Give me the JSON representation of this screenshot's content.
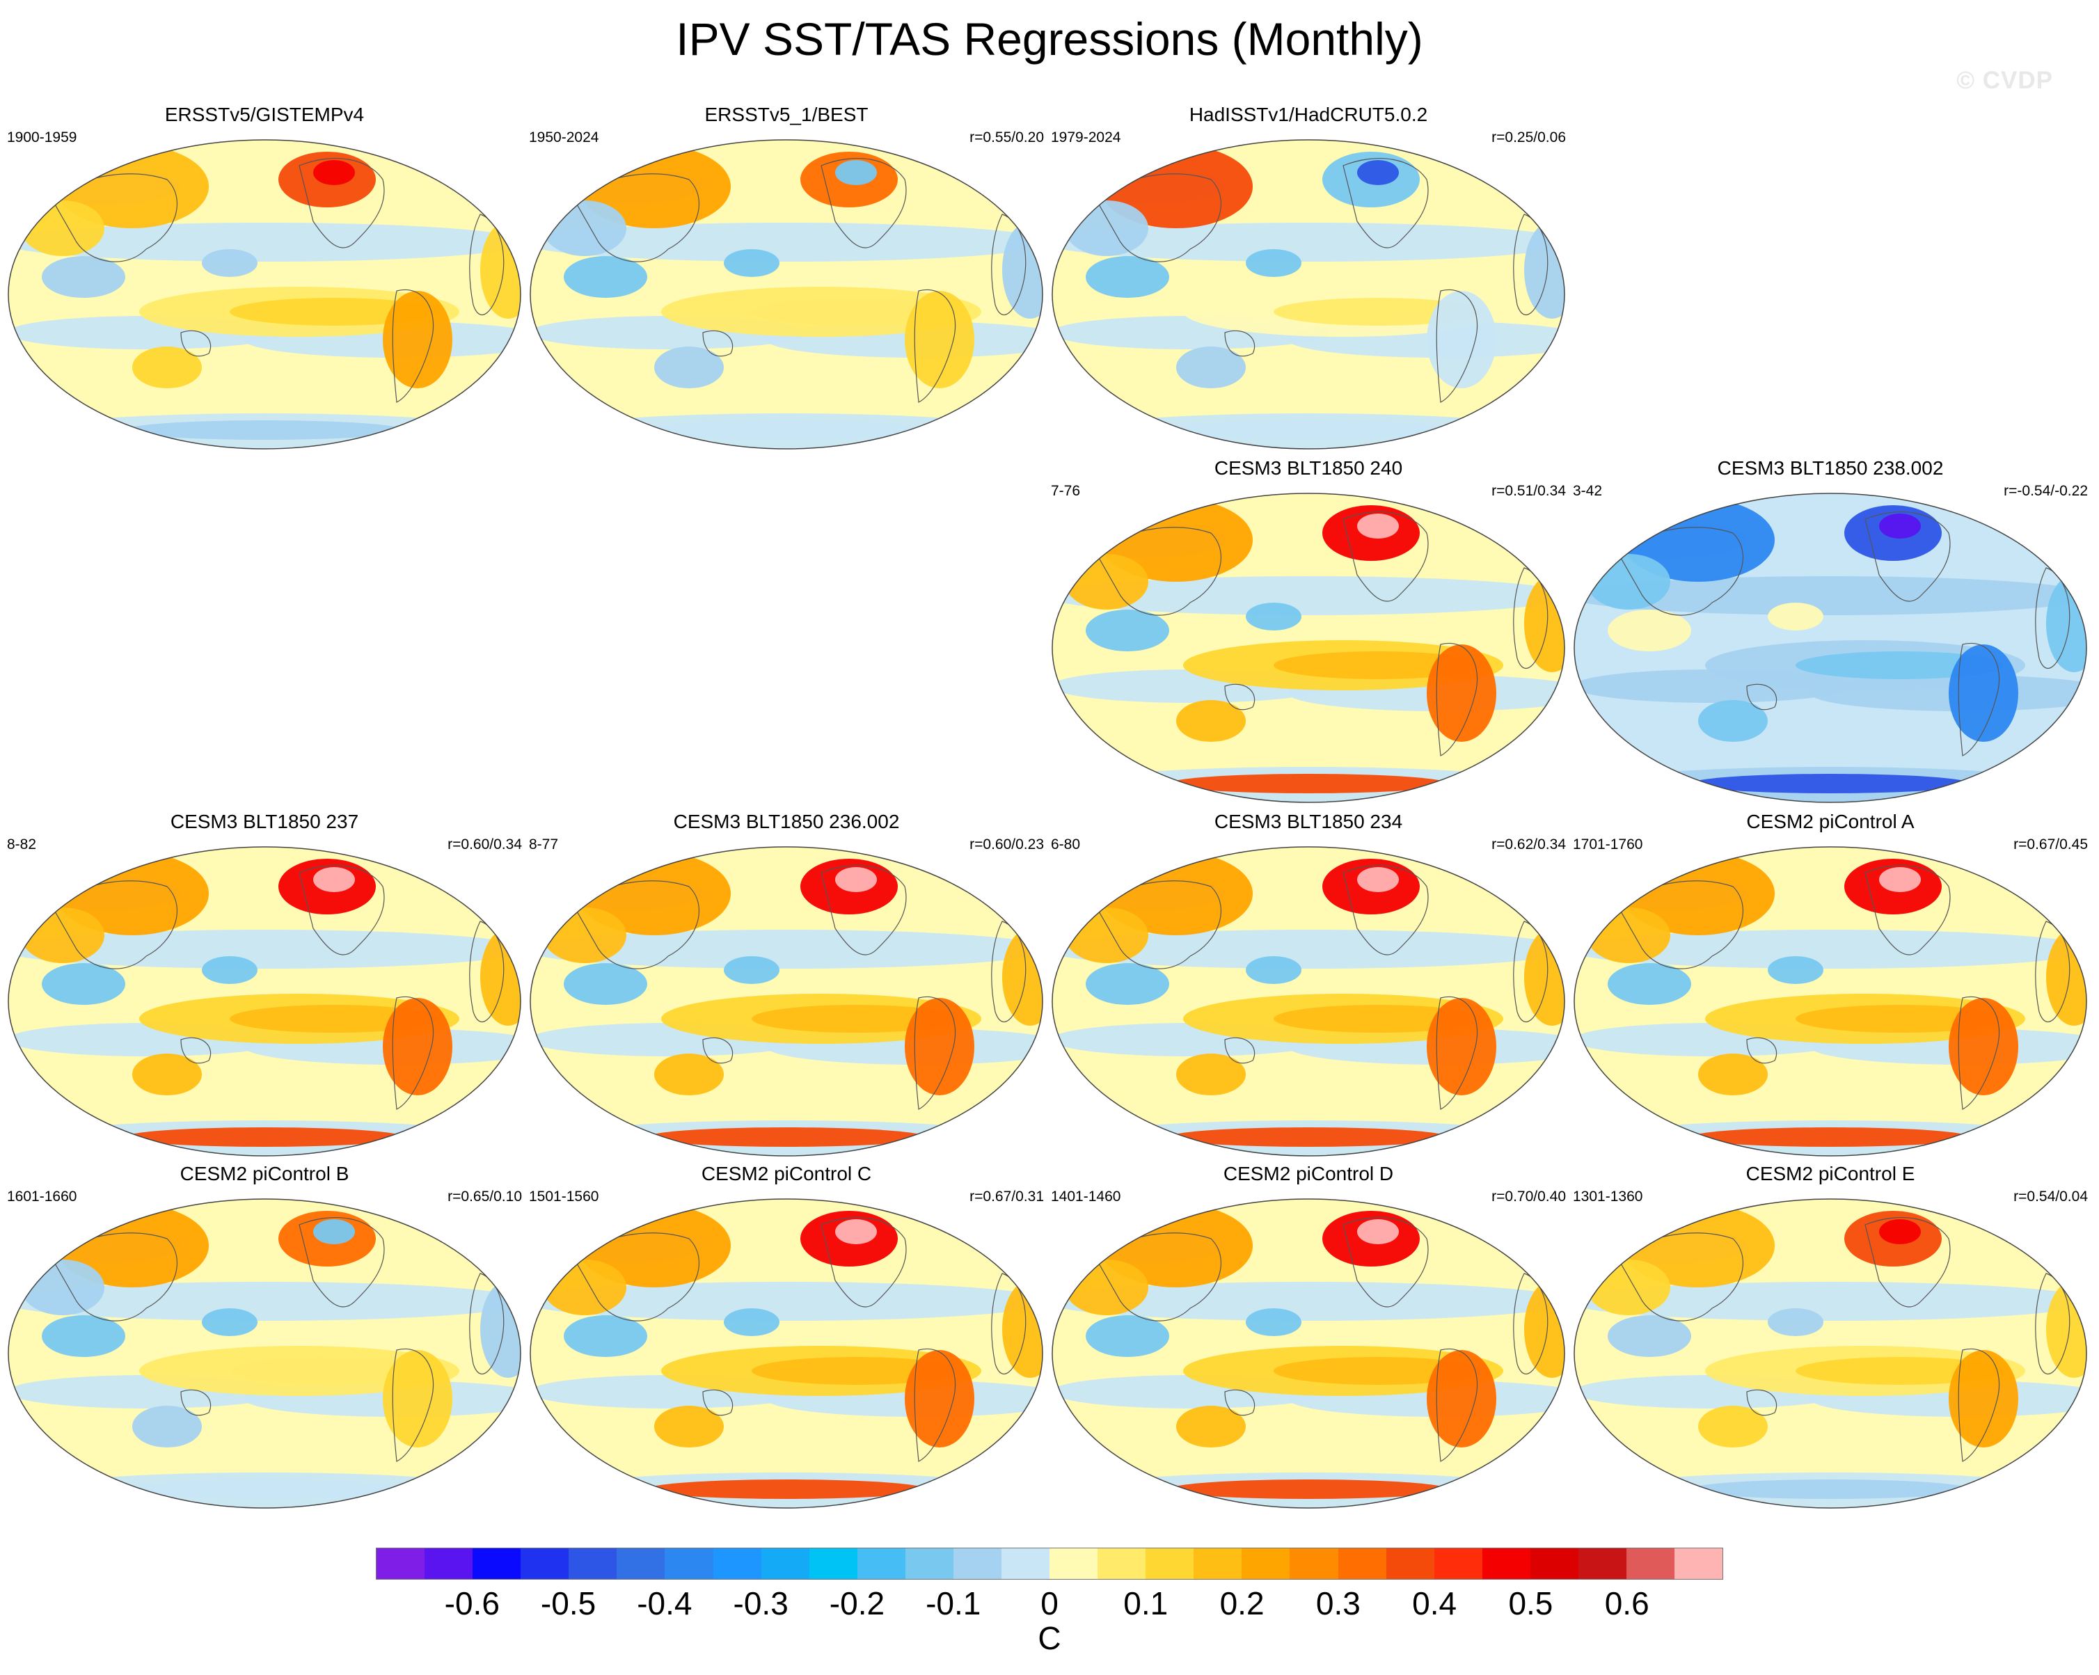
{
  "title": "IPV SST/TAS Regressions (Monthly)",
  "watermark": "© CVDP",
  "panels": [
    {
      "title": "ERSSTv5/GISTEMPv4",
      "period": "1900-1959",
      "corr": "",
      "palette": "mixed_warm"
    },
    {
      "title": "ERSSTv5_1/BEST",
      "period": "1950-2024",
      "corr": "r=0.55/0.20",
      "palette": "mixed"
    },
    {
      "title": "HadISSTv1/HadCRUT5.0.2",
      "period": "1979-2024",
      "corr": "r=0.25/0.06",
      "palette": "mixed_cool"
    },
    {
      "title": "CESM3 BLT1850 240",
      "period": "7-76",
      "corr": "r=0.51/0.34",
      "palette": "warm"
    },
    {
      "title": "CESM3 BLT1850 238.002",
      "period": "3-42",
      "corr": "r=-0.54/-0.22",
      "palette": "cool"
    },
    {
      "title": "CESM3 BLT1850 237",
      "period": "8-82",
      "corr": "r=0.60/0.34",
      "palette": "warm"
    },
    {
      "title": "CESM3 BLT1850 236.002",
      "period": "8-77",
      "corr": "r=0.60/0.23",
      "palette": "warm"
    },
    {
      "title": "CESM3 BLT1850 234",
      "period": "6-80",
      "corr": "r=0.62/0.34",
      "palette": "warm"
    },
    {
      "title": "CESM2 piControl A",
      "period": "1701-1760",
      "corr": "r=0.67/0.45",
      "palette": "warm"
    },
    {
      "title": "CESM2 piControl B",
      "period": "1601-1660",
      "corr": "r=0.65/0.10",
      "palette": "mixed"
    },
    {
      "title": "CESM2 piControl C",
      "period": "1501-1560",
      "corr": "r=0.67/0.31",
      "palette": "warm"
    },
    {
      "title": "CESM2 piControl D",
      "period": "1401-1460",
      "corr": "r=0.70/0.40",
      "palette": "warm"
    },
    {
      "title": "CESM2 piControl E",
      "period": "1301-1360",
      "corr": "r=0.54/0.04",
      "palette": "mixed_warm"
    }
  ],
  "colorbar": {
    "colors": [
      "#7f1ee6",
      "#5a14ef",
      "#0a0aff",
      "#1e32f0",
      "#2d55e6",
      "#3270e6",
      "#2d87f0",
      "#1e96ff",
      "#14aaf5",
      "#00c3f5",
      "#46bef5",
      "#78c8f0",
      "#a5d2f0",
      "#c8e6f5",
      "#fffab4",
      "#ffeb69",
      "#ffd732",
      "#ffbe14",
      "#ffa500",
      "#ff8c00",
      "#ff6e00",
      "#f54b0a",
      "#ff2d0a",
      "#f50000",
      "#dc0000",
      "#c81414",
      "#e15a5a",
      "#ffb4b4"
    ],
    "tick_labels": [
      "-0.6",
      "-0.5",
      "-0.4",
      "-0.3",
      "-0.2",
      "-0.1",
      "0",
      "0.1",
      "0.2",
      "0.3",
      "0.4",
      "0.5",
      "0.6"
    ],
    "units": "C"
  }
}
